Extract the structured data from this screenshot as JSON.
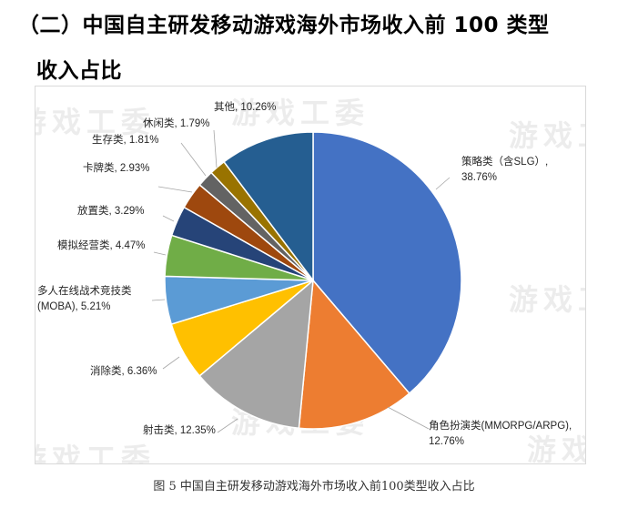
{
  "heading": {
    "line1": "（二）中国自主研发移动游戏海外市场收入前 100 类型",
    "line2": "收入占比"
  },
  "watermark": "游戏工委",
  "caption": "图 5 中国自主研发移动游戏海外市场收入前100类型收入占比",
  "chart_data": {
    "type": "pie",
    "title": "",
    "start_angle_deg": 0,
    "direction": "clockwise",
    "slices": [
      {
        "label": [
          "策略类（含SLG）,",
          "38.76%"
        ],
        "value": 38.76,
        "color": "#4472c4"
      },
      {
        "label": [
          "角色扮演类(MMORPG/ARPG),",
          "12.76%"
        ],
        "value": 12.76,
        "color": "#ed7d31"
      },
      {
        "label": [
          "射击类, 12.35%"
        ],
        "value": 12.35,
        "color": "#a5a5a5"
      },
      {
        "label": [
          "消除类, 6.36%"
        ],
        "value": 6.36,
        "color": "#ffc000"
      },
      {
        "label": [
          "多人在线战术竞技类",
          "(MOBA), 5.21%"
        ],
        "value": 5.21,
        "color": "#5b9bd5"
      },
      {
        "label": [
          "模拟经营类, 4.47%"
        ],
        "value": 4.47,
        "color": "#70ad47"
      },
      {
        "label": [
          "放置类, 3.29%"
        ],
        "value": 3.29,
        "color": "#264478"
      },
      {
        "label": [
          "卡牌类, 2.93%"
        ],
        "value": 2.93,
        "color": "#9e480e"
      },
      {
        "label": [
          "生存类, 1.81%"
        ],
        "value": 1.81,
        "color": "#636363"
      },
      {
        "label": [
          "休闲类, 1.79%"
        ],
        "value": 1.79,
        "color": "#997300"
      },
      {
        "label": [
          "其他, 10.26%"
        ],
        "value": 10.26,
        "color": "#255e91"
      }
    ]
  }
}
